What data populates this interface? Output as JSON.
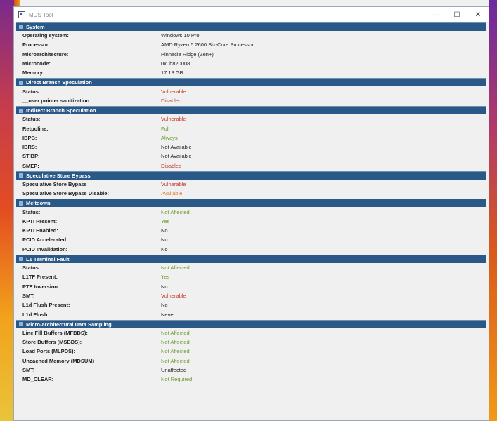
{
  "window": {
    "title": "MDS Tool",
    "controls": {
      "minimize": "—",
      "maximize": "☐",
      "close": "✕"
    }
  },
  "colors": {
    "header_bg": "#2b5987",
    "red": "#c0392b",
    "green": "#6b9a2e",
    "orange": "#e07a30",
    "normal": "#222222"
  },
  "sections": [
    {
      "title": "System",
      "rows": [
        {
          "label": "Operating system:",
          "value": "Windows 10 Pro",
          "status": "black"
        },
        {
          "label": "Processor:",
          "value": "AMD Ryzen 5 2600 Six-Core Processor",
          "status": "black"
        },
        {
          "label": "Microarchitecture:",
          "value": "Pinnacle Ridge (Zen+)",
          "status": "black"
        },
        {
          "label": "Microcode:",
          "value": "0x0b820008",
          "status": "black"
        },
        {
          "label": "Memory:",
          "value": "17.18 GB",
          "status": "black"
        }
      ]
    },
    {
      "title": "Direct Branch Speculation",
      "rows": [
        {
          "label": "Status:",
          "value": "Vulnerable",
          "status": "red"
        },
        {
          "label": "__user pointer sanitization:",
          "value": "Disabled",
          "status": "red"
        }
      ]
    },
    {
      "title": "Indirect Branch Speculation",
      "rows": [
        {
          "label": "Status:",
          "value": "Vulnerable",
          "status": "red"
        },
        {
          "label": "Retpoline:",
          "value": "Full",
          "status": "green"
        },
        {
          "label": "IBPB:",
          "value": "Always",
          "status": "green"
        },
        {
          "label": "IBRS:",
          "value": "Not Available",
          "status": "black"
        },
        {
          "label": "STIBP:",
          "value": "Not Available",
          "status": "black"
        },
        {
          "label": "SMEP:",
          "value": "Disabled",
          "status": "red"
        }
      ]
    },
    {
      "title": "Speculative Store Bypass",
      "rows": [
        {
          "label": "Speculative Store Bypass",
          "value": "Vulnerable",
          "status": "red"
        },
        {
          "label": "Speculative Store Bypass Disable:",
          "value": "Available",
          "status": "orange"
        }
      ]
    },
    {
      "title": "Meltdown",
      "rows": [
        {
          "label": "Status:",
          "value": "Not Affected",
          "status": "green"
        },
        {
          "label": "KPTI Present:",
          "value": "Yes",
          "status": "green"
        },
        {
          "label": "KPTI Enabled:",
          "value": "No",
          "status": "black"
        },
        {
          "label": "PCID Accelerated:",
          "value": "No",
          "status": "black"
        },
        {
          "label": "PCID Invalidation:",
          "value": "No",
          "status": "black"
        }
      ]
    },
    {
      "title": "L1 Terminal Fault",
      "rows": [
        {
          "label": "Status:",
          "value": "Not Affected",
          "status": "green"
        },
        {
          "label": "L1TF Present:",
          "value": "Yes",
          "status": "green"
        },
        {
          "label": "PTE Inversion:",
          "value": "No",
          "status": "black"
        },
        {
          "label": "SMT:",
          "value": "Vulnerable",
          "status": "red"
        },
        {
          "label": "L1d Flush Present:",
          "value": "No",
          "status": "black"
        },
        {
          "label": "L1d Flush:",
          "value": "Never",
          "status": "black"
        }
      ]
    },
    {
      "title": "Micro-architectural Data Sampling",
      "rows": [
        {
          "label": "Line Fill Buffers (MFBDS):",
          "value": "Not Affected",
          "status": "green"
        },
        {
          "label": "Store Buffers (MSBDS):",
          "value": "Not Affected",
          "status": "green"
        },
        {
          "label": "Load Ports (MLPDS):",
          "value": "Not Affected",
          "status": "green"
        },
        {
          "label": "Uncached Memory (MDSUM)",
          "value": "Not Affected",
          "status": "green"
        },
        {
          "label": "SMT:",
          "value": "Unaffected",
          "status": "black"
        },
        {
          "label": "MD_CLEAR:",
          "value": "Not Required",
          "status": "green"
        }
      ]
    }
  ]
}
